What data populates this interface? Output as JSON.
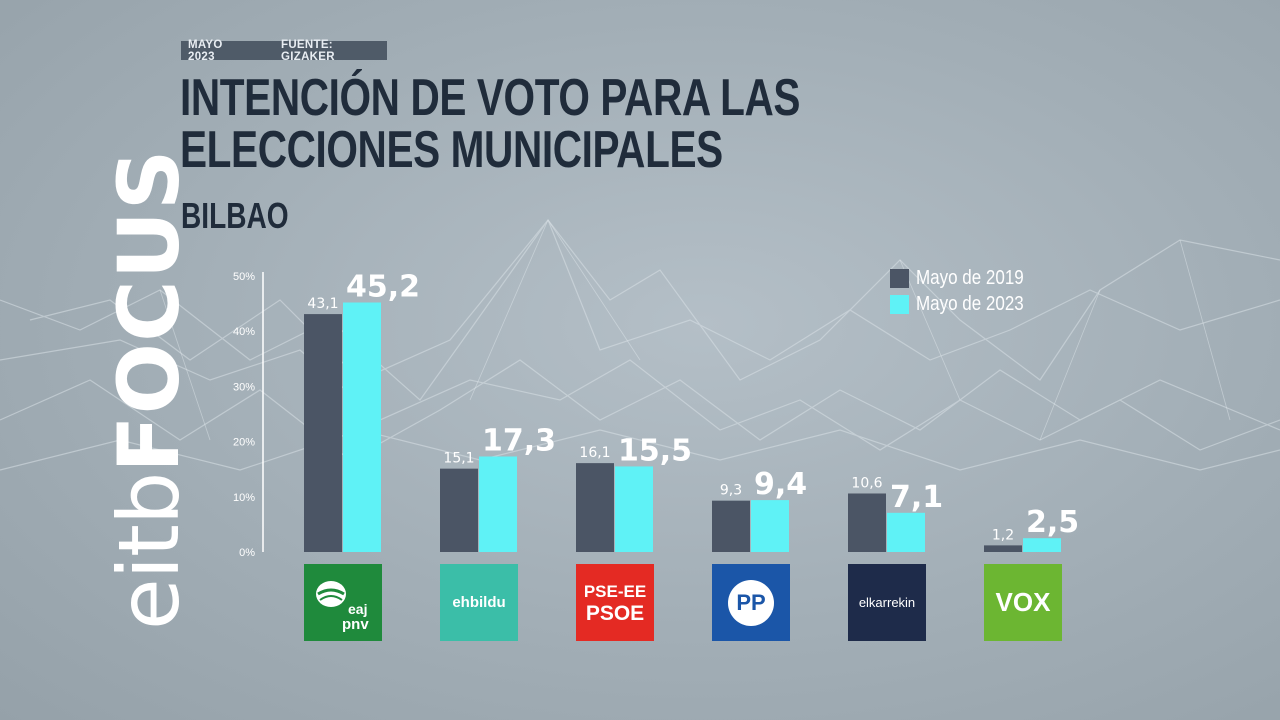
{
  "header": {
    "date_label": "MAYO 2023",
    "source_label": "FUENTE: GIZAKER",
    "title": "INTENCIÓN DE VOTO PARA LAS ELECCIONES MUNICIPALES",
    "subtitle": "BILBAO"
  },
  "brand": {
    "part1": "eitb",
    "part2": "FOCUS"
  },
  "colors": {
    "series_2019": "#4b5565",
    "series_2023": "#5ff2f6",
    "title": "#202c3b",
    "pnv": "#1f8a3c",
    "ehbildu": "#3bbea8",
    "psoe": "#e42a23",
    "pp": "#1b56a8",
    "elkarrekin": "#1e2b4a",
    "vox": "#6cb632"
  },
  "parties": [
    {
      "key": "pnv",
      "logo_text_1": "eaj",
      "logo_text_2": "pnv"
    },
    {
      "key": "ehbildu",
      "logo_text_1": "ehbildu"
    },
    {
      "key": "psoe",
      "logo_text_1": "PSE-EE",
      "logo_text_2": "PSOE"
    },
    {
      "key": "pp",
      "logo_text_1": "PP"
    },
    {
      "key": "elkarrekin",
      "logo_text_1": "elkarrekin"
    },
    {
      "key": "vox",
      "logo_text_1": "VOX"
    }
  ],
  "chart_data": {
    "type": "bar",
    "categories": [
      "EAJ-PNV",
      "EH Bildu",
      "PSE-EE PSOE",
      "PP",
      "Elkarrekin",
      "VOX"
    ],
    "series": [
      {
        "name": "Mayo de 2019",
        "values": [
          43.1,
          15.1,
          16.1,
          9.3,
          10.6,
          1.2
        ],
        "labels": [
          "43,1",
          "15,1",
          "16,1",
          "9,3",
          "10,6",
          "1,2"
        ]
      },
      {
        "name": "Mayo de 2023",
        "values": [
          45.2,
          17.3,
          15.5,
          9.4,
          7.1,
          2.5
        ],
        "labels": [
          "45,2",
          "17,3",
          "15,5",
          "9,4",
          "7,1",
          "2,5"
        ]
      }
    ],
    "y_ticks": [
      "0%",
      "10%",
      "20%",
      "30%",
      "40%",
      "50%"
    ],
    "ylim": [
      0,
      50
    ],
    "legend_position": "top-right",
    "grid": false
  }
}
